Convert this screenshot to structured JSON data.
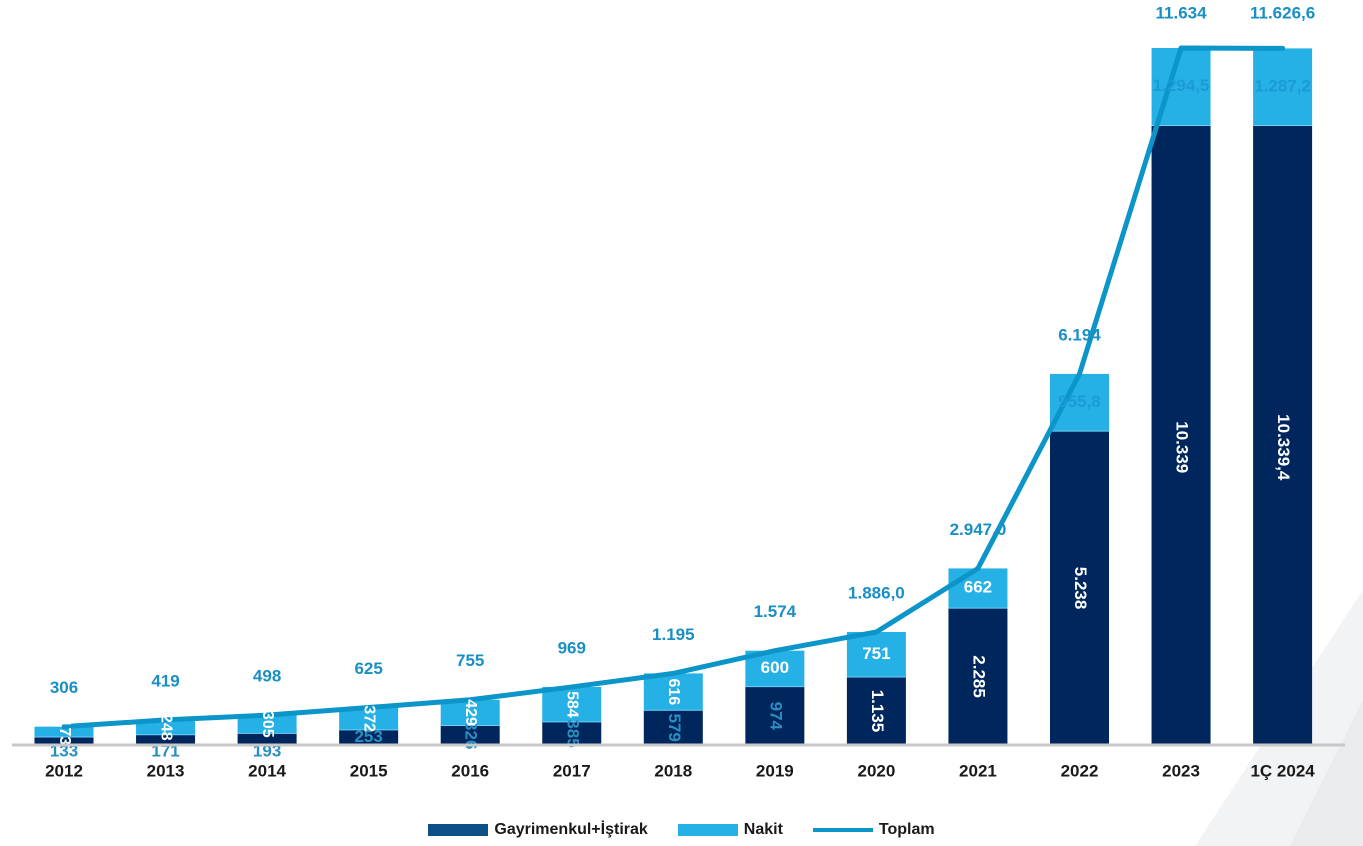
{
  "chart_data": {
    "type": "bar",
    "stacked": true,
    "categories": [
      "2012",
      "2013",
      "2014",
      "2015",
      "2016",
      "2017",
      "2018",
      "2019",
      "2020",
      "2021",
      "2022",
      "2023",
      "1Ç 2024"
    ],
    "series": [
      {
        "name": "Gayrimenkul+İştirak",
        "kind": "bar",
        "color": "#00265e",
        "values": [
          133,
          171,
          193,
          253,
          326,
          385,
          579,
          974,
          1135,
          2285,
          5238,
          10339,
          10339.4
        ],
        "labels": [
          "133",
          "171",
          "193",
          "253",
          "326",
          "385",
          "579",
          "974",
          "1.135",
          "2.285",
          "5.238",
          "10.339",
          "10.339,4"
        ]
      },
      {
        "name": "Nakit",
        "kind": "bar",
        "color": "#26b1e6",
        "values": [
          173,
          248,
          305,
          372,
          429,
          584,
          616,
          600,
          751,
          662,
          955.8,
          1294.5,
          1287.2
        ],
        "labels": [
          "173",
          "248",
          "305",
          "372",
          "429",
          "584",
          "616",
          "600",
          "751",
          "662",
          "955,8",
          "1.294,5",
          "1.287,2"
        ]
      },
      {
        "name": "Toplam",
        "kind": "line",
        "color": "#0b95c8",
        "values": [
          306,
          419,
          498,
          625,
          755,
          969,
          1195,
          1574,
          1886,
          2947,
          6194,
          11634,
          11626.6
        ],
        "labels": [
          "306",
          "419",
          "498",
          "625",
          "755",
          "969",
          "1.195",
          "1.574",
          "1.886,0",
          "2.947,0",
          "6.194",
          "11.634",
          "11.626,6"
        ]
      }
    ],
    "ylim": [
      0,
      11700
    ],
    "grid": false,
    "legend_position": "bottom-center"
  },
  "legend": {
    "items": [
      {
        "label": "Gayrimenkul+İştirak",
        "color": "#0a4f86"
      },
      {
        "label": "Nakit",
        "color": "#26b1e6"
      },
      {
        "label": "Toplam",
        "color": "#0b95c8"
      }
    ]
  }
}
